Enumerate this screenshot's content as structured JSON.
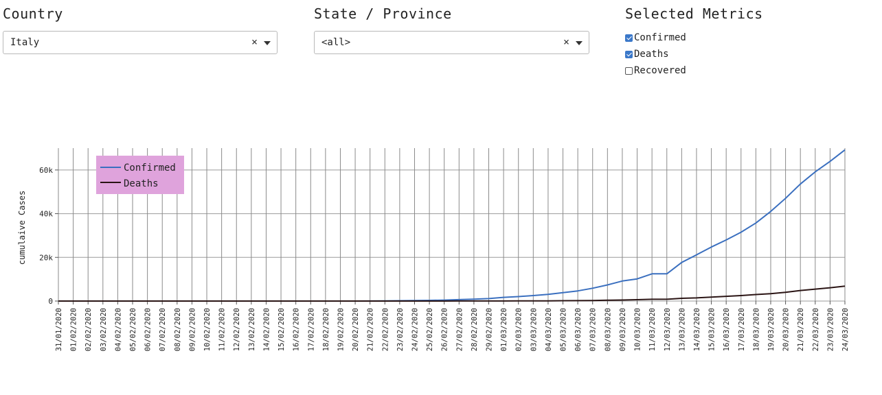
{
  "country": {
    "title": "Country",
    "value": "Italy",
    "clear": "×"
  },
  "state": {
    "title": "State / Province",
    "value": "<all>",
    "clear": "×"
  },
  "metrics": {
    "title": "Selected Metrics",
    "items": [
      {
        "label": "Confirmed",
        "checked": true
      },
      {
        "label": "Deaths",
        "checked": true
      },
      {
        "label": "Recovered",
        "checked": false
      }
    ]
  },
  "chart_data": {
    "type": "line",
    "ylabel": "cumulaive Cases",
    "ylim": [
      0,
      70000
    ],
    "yticks": [
      {
        "v": 0,
        "label": "0"
      },
      {
        "v": 20000,
        "label": "20k"
      },
      {
        "v": 40000,
        "label": "40k"
      },
      {
        "v": 60000,
        "label": "60k"
      }
    ],
    "grid": true,
    "legend_position": "top-left",
    "x": [
      "31/01/2020",
      "01/02/2020",
      "02/02/2020",
      "03/02/2020",
      "04/02/2020",
      "05/02/2020",
      "06/02/2020",
      "07/02/2020",
      "08/02/2020",
      "09/02/2020",
      "10/02/2020",
      "11/02/2020",
      "12/02/2020",
      "13/02/2020",
      "14/02/2020",
      "15/02/2020",
      "16/02/2020",
      "17/02/2020",
      "18/02/2020",
      "19/02/2020",
      "20/02/2020",
      "21/02/2020",
      "22/02/2020",
      "23/02/2020",
      "24/02/2020",
      "25/02/2020",
      "26/02/2020",
      "27/02/2020",
      "28/02/2020",
      "29/02/2020",
      "01/03/2020",
      "02/03/2020",
      "03/03/2020",
      "04/03/2020",
      "05/03/2020",
      "06/03/2020",
      "07/03/2020",
      "08/03/2020",
      "09/03/2020",
      "10/03/2020",
      "11/03/2020",
      "12/03/2020",
      "13/03/2020",
      "14/03/2020",
      "15/03/2020",
      "16/03/2020",
      "17/03/2020",
      "18/03/2020",
      "19/03/2020",
      "20/03/2020",
      "21/03/2020",
      "22/03/2020",
      "23/03/2020",
      "24/03/2020"
    ],
    "series": [
      {
        "name": "Confirmed",
        "color": "#3a6fbf",
        "values": [
          2,
          2,
          2,
          2,
          2,
          2,
          2,
          3,
          3,
          3,
          3,
          3,
          3,
          3,
          3,
          3,
          3,
          3,
          3,
          3,
          3,
          20,
          62,
          155,
          229,
          322,
          453,
          655,
          888,
          1128,
          1694,
          2036,
          2502,
          3089,
          3858,
          4636,
          5883,
          7375,
          9172,
          10149,
          12462,
          12462,
          17660,
          21157,
          24747,
          27980,
          31506,
          35713,
          41035,
          47021,
          53578,
          59138,
          63927,
          69176
        ]
      },
      {
        "name": "Deaths",
        "color": "#2a1414",
        "values": [
          0,
          0,
          0,
          0,
          0,
          0,
          0,
          0,
          0,
          0,
          0,
          0,
          0,
          0,
          0,
          0,
          0,
          0,
          0,
          0,
          0,
          1,
          2,
          3,
          7,
          10,
          12,
          17,
          21,
          29,
          34,
          52,
          79,
          107,
          148,
          197,
          233,
          366,
          463,
          631,
          827,
          827,
          1266,
          1441,
          1809,
          2158,
          2503,
          2978,
          3405,
          4032,
          4825,
          5476,
          6077,
          6820
        ]
      }
    ]
  }
}
